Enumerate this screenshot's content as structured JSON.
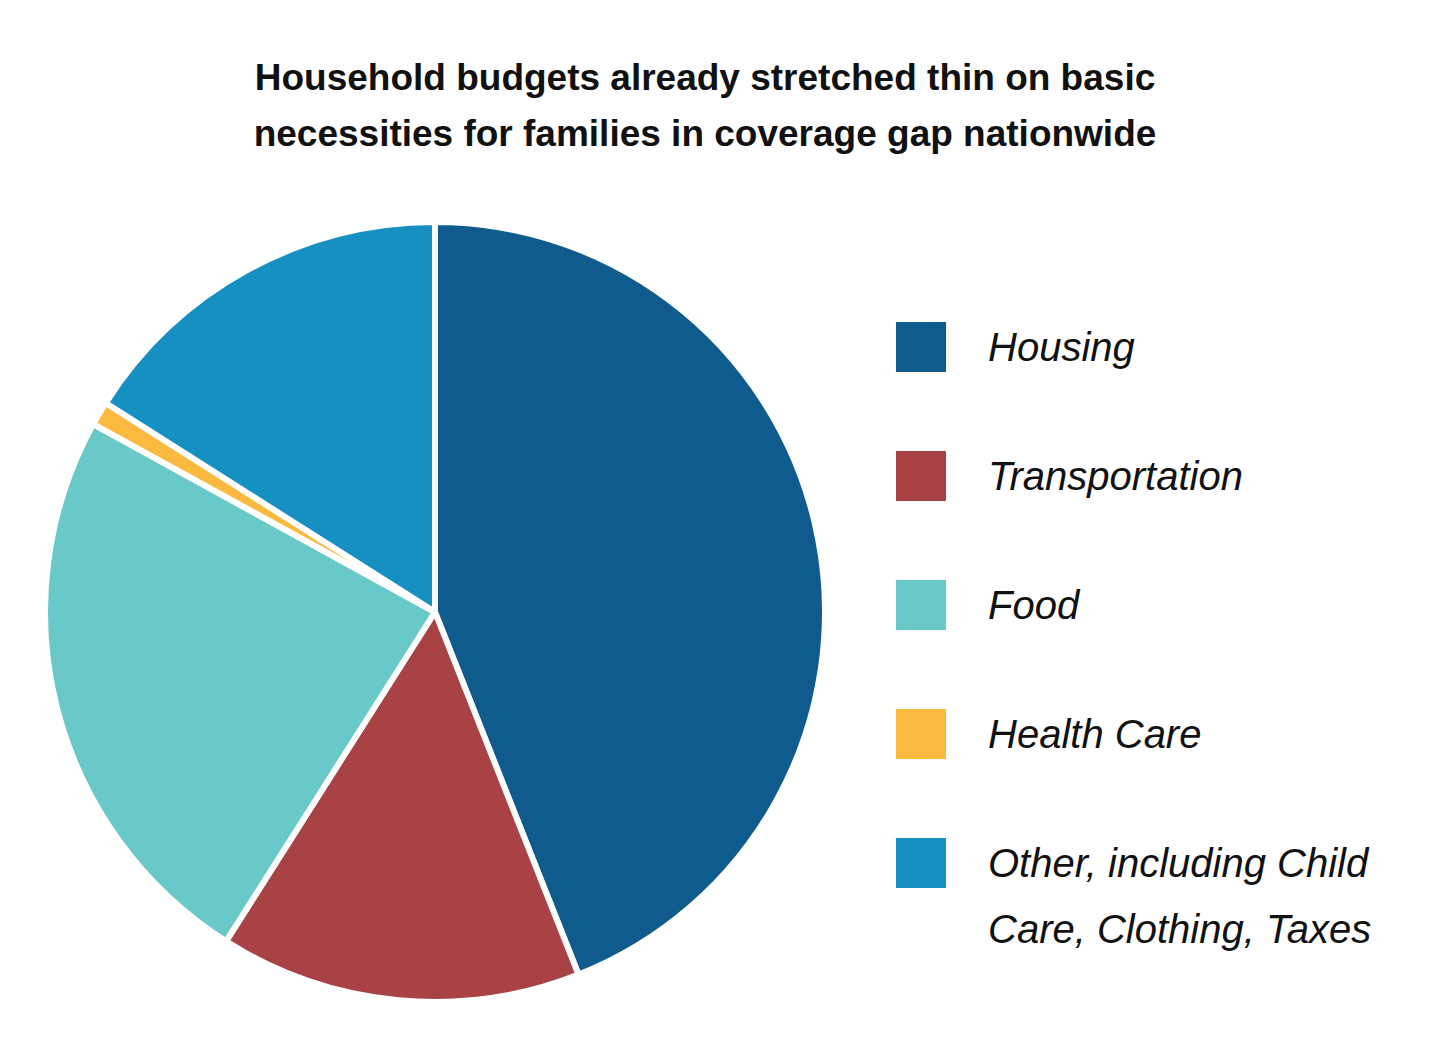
{
  "chart_data": {
    "type": "pie",
    "title": "Household budgets already stretched thin on basic necessities for families in coverage gap nationwide",
    "categories": [
      "Housing",
      "Transportation",
      "Food",
      "Health Care",
      "Other, including Child Care, Clothing, Taxes"
    ],
    "values": [
      44,
      15,
      24,
      1,
      16
    ],
    "colors": [
      "#105b8e",
      "#a84244",
      "#69c8c8",
      "#fbb940",
      "#168fc1"
    ],
    "legend": "right"
  }
}
